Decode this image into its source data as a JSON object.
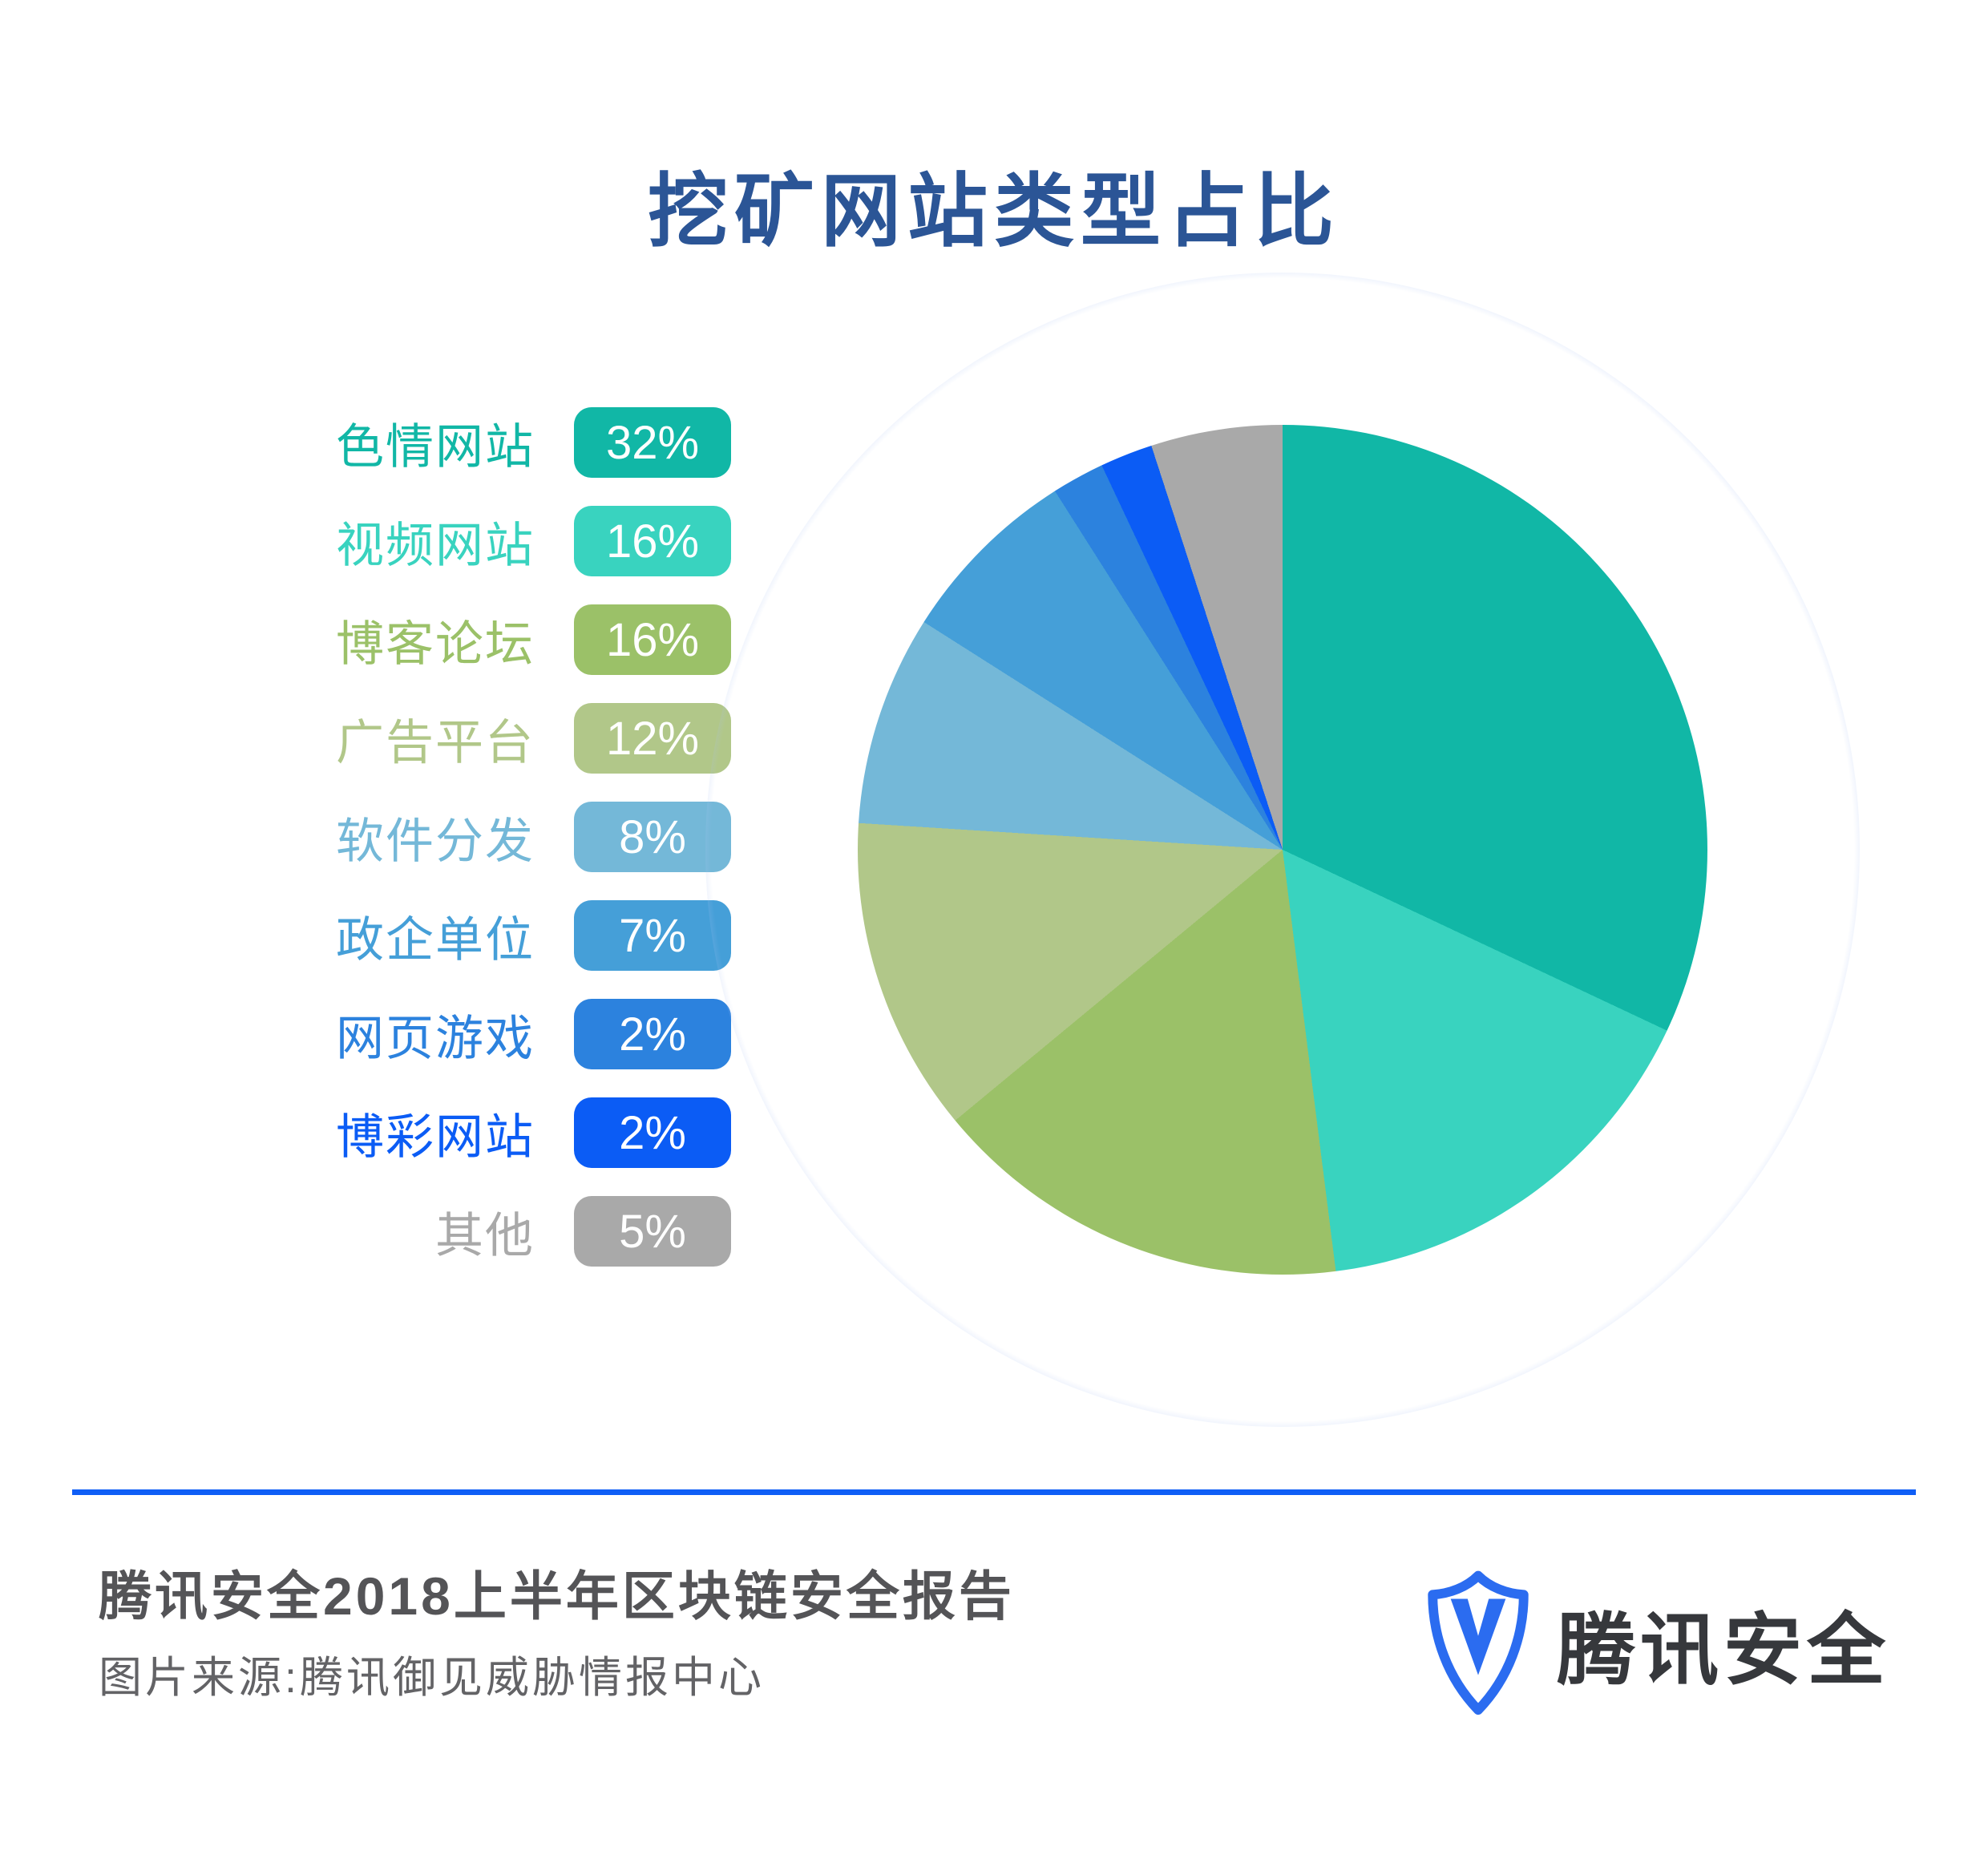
{
  "title": "挖矿网站类型占比",
  "title_color": "#2b5596",
  "chart_data": {
    "type": "pie",
    "title": "挖矿网站类型占比",
    "legend_position": "left",
    "start_angle_deg": 0,
    "direction": "clockwise",
    "categories": [
      "色情网站",
      "视频网站",
      "博客论坛",
      "广告平台",
      "软件分发",
      "政企单位",
      "网页游戏",
      "博彩网站",
      "其他"
    ],
    "values": [
      32,
      16,
      16,
      12,
      8,
      7,
      2,
      2,
      5
    ],
    "slices": [
      {
        "label": "色情网站",
        "value": 32,
        "display": "32%",
        "color": "#11b7a6"
      },
      {
        "label": "视频网站",
        "value": 16,
        "display": "16%",
        "color": "#39d3bf"
      },
      {
        "label": "博客论坛",
        "value": 16,
        "display": "16%",
        "color": "#9bc168"
      },
      {
        "label": "广告平台",
        "value": 12,
        "display": "12%",
        "color": "#b1c789"
      },
      {
        "label": "软件分发",
        "value": 8,
        "display": "8%",
        "color": "#74b8d8"
      },
      {
        "label": "政企单位",
        "value": 7,
        "display": "7%",
        "color": "#459fd8"
      },
      {
        "label": "网页游戏",
        "value": 2,
        "display": "2%",
        "color": "#2c82de"
      },
      {
        "label": "博彩网站",
        "value": 2,
        "display": "2%",
        "color": "#0b5cf5"
      },
      {
        "label": "其他",
        "value": 5,
        "display": "5%",
        "color": "#a9a9a9"
      }
    ],
    "glow_color": "#adc3f2"
  },
  "footer": {
    "report_title": "腾讯安全2018上半年区块链安全报告",
    "source_line": "图片来源:腾讯御见威胁情报中心",
    "divider_color": "#0f5ef6"
  },
  "logo": {
    "text": "腾讯安全",
    "shield_icon": "shield-check",
    "shield_color": "#2b6cf0"
  }
}
